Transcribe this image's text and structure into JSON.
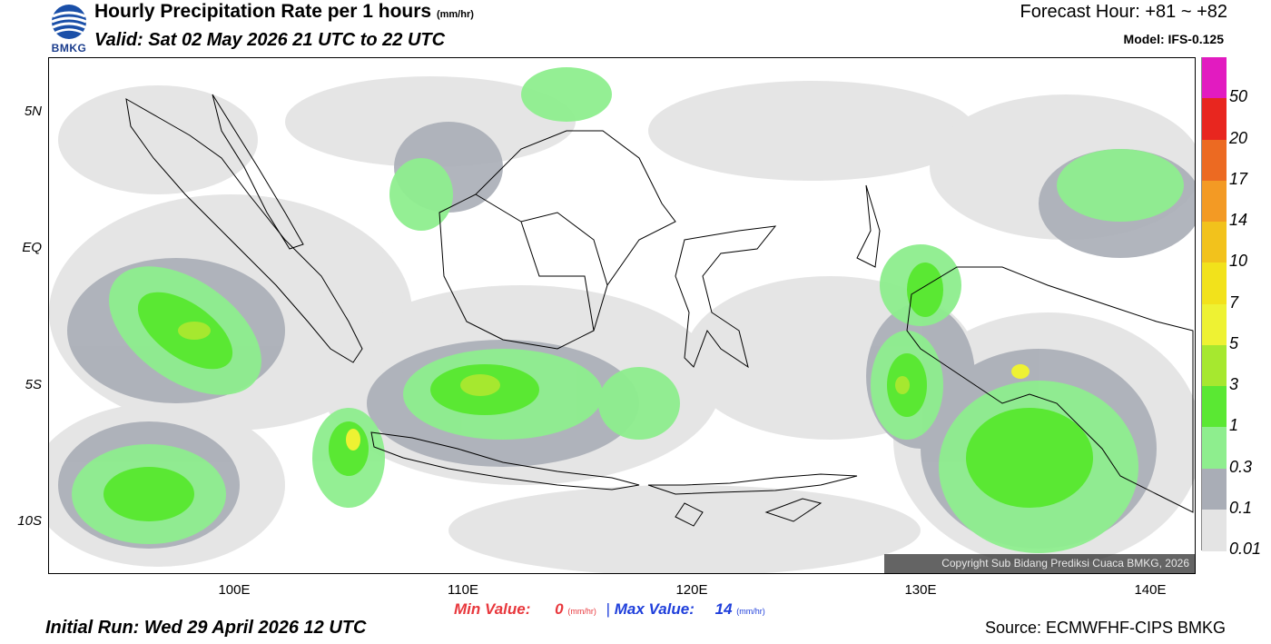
{
  "header": {
    "logo_text": "BMKG",
    "title": "Hourly Precipitation Rate per 1 hours",
    "title_unit": "(mm/hr)",
    "valid": "Valid: Sat 02 May 2026 21 UTC to 22 UTC",
    "forecast_hour": "Forecast Hour: +81 ~ +82",
    "model": "Model: IFS-0.125"
  },
  "map": {
    "lat_labels": [
      "5N",
      "EQ",
      "5S",
      "10S"
    ],
    "lon_labels": [
      "100E",
      "110E",
      "120E",
      "130E",
      "140E"
    ],
    "copyright": "Copyright Sub Bidang Prediksi Cuaca BMKG, 2026"
  },
  "legend": {
    "levels": [
      "50",
      "20",
      "17",
      "14",
      "10",
      "7",
      "5",
      "3",
      "1",
      "0.3",
      "0.1",
      "0.01"
    ],
    "colors": [
      "#e21bc0",
      "#e8261f",
      "#ec6a22",
      "#f39a24",
      "#f2c21c",
      "#f2e21b",
      "#eef233",
      "#a6e82f",
      "#5ae833",
      "#8eee8e",
      "#a9adb6",
      "#e4e4e4"
    ]
  },
  "footer": {
    "min_label": "Min Value:",
    "min_value": "0",
    "max_label": "Max Value:",
    "max_value": "14",
    "unit": "(mm/hr)",
    "initial_run": "Initial Run: Wed 29 April 2026 12 UTC",
    "source": "Source: ECMWFHF-CIPS BMKG"
  }
}
